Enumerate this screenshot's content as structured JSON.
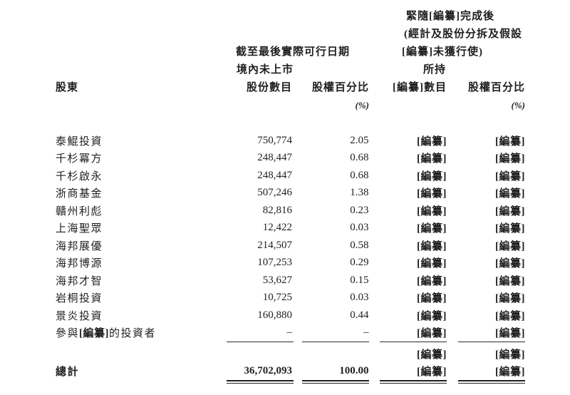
{
  "table": {
    "header": {
      "post_completion_line1": "緊隨[編纂]完成後",
      "post_completion_line2": "(經計及股份分拆及假設",
      "post_completion_line3": "[編纂]未獲行使)",
      "post_completion_line4": "所持",
      "as_of_line1": "截至最後實際可行日期",
      "as_of_line2": "境內未上市",
      "shareholder": "股東",
      "shares": "股份數目",
      "equity_pct": "股權百分比",
      "redacted_count": "[編纂]數目",
      "pct_unit": "(%)"
    },
    "rows": [
      {
        "name": "泰鯤投資",
        "shares": "750,774",
        "pct": "2.05",
        "post_shares": "[編纂]",
        "post_pct": "[編纂]"
      },
      {
        "name": "千杉冪方",
        "shares": "248,447",
        "pct": "0.68",
        "post_shares": "[編纂]",
        "post_pct": "[編纂]"
      },
      {
        "name": "千杉啟永",
        "shares": "248,447",
        "pct": "0.68",
        "post_shares": "[編纂]",
        "post_pct": "[編纂]"
      },
      {
        "name": "浙商基金",
        "shares": "507,246",
        "pct": "1.38",
        "post_shares": "[編纂]",
        "post_pct": "[編纂]"
      },
      {
        "name": "贛州利彪",
        "shares": "82,816",
        "pct": "0.23",
        "post_shares": "[編纂]",
        "post_pct": "[編纂]"
      },
      {
        "name": "上海聖眾",
        "shares": "12,422",
        "pct": "0.03",
        "post_shares": "[編纂]",
        "post_pct": "[編纂]"
      },
      {
        "name": "海邦展優",
        "shares": "214,507",
        "pct": "0.58",
        "post_shares": "[編纂]",
        "post_pct": "[編纂]"
      },
      {
        "name": "海邦博源",
        "shares": "107,253",
        "pct": "0.29",
        "post_shares": "[編纂]",
        "post_pct": "[編纂]"
      },
      {
        "name": "海邦才智",
        "shares": "53,627",
        "pct": "0.15",
        "post_shares": "[編纂]",
        "post_pct": "[編纂]"
      },
      {
        "name": "岩桐投資",
        "shares": "10,725",
        "pct": "0.03",
        "post_shares": "[編纂]",
        "post_pct": "[編纂]"
      },
      {
        "name": "景炎投資",
        "shares": "160,880",
        "pct": "0.44",
        "post_shares": "[編纂]",
        "post_pct": "[編纂]"
      }
    ],
    "participants_row": {
      "prefix": "參與",
      "redacted": "[編纂]",
      "suffix": "的投資者",
      "shares": "–",
      "pct": "–",
      "post_shares": "[編纂]",
      "post_pct": "[編纂]"
    },
    "pre_total_row": {
      "post_shares": "[編纂]",
      "post_pct": "[編纂]"
    },
    "total_row": {
      "label": "總計",
      "shares": "36,702,093",
      "pct": "100.00",
      "post_shares": "[編纂]",
      "post_pct": "[編纂]"
    }
  }
}
